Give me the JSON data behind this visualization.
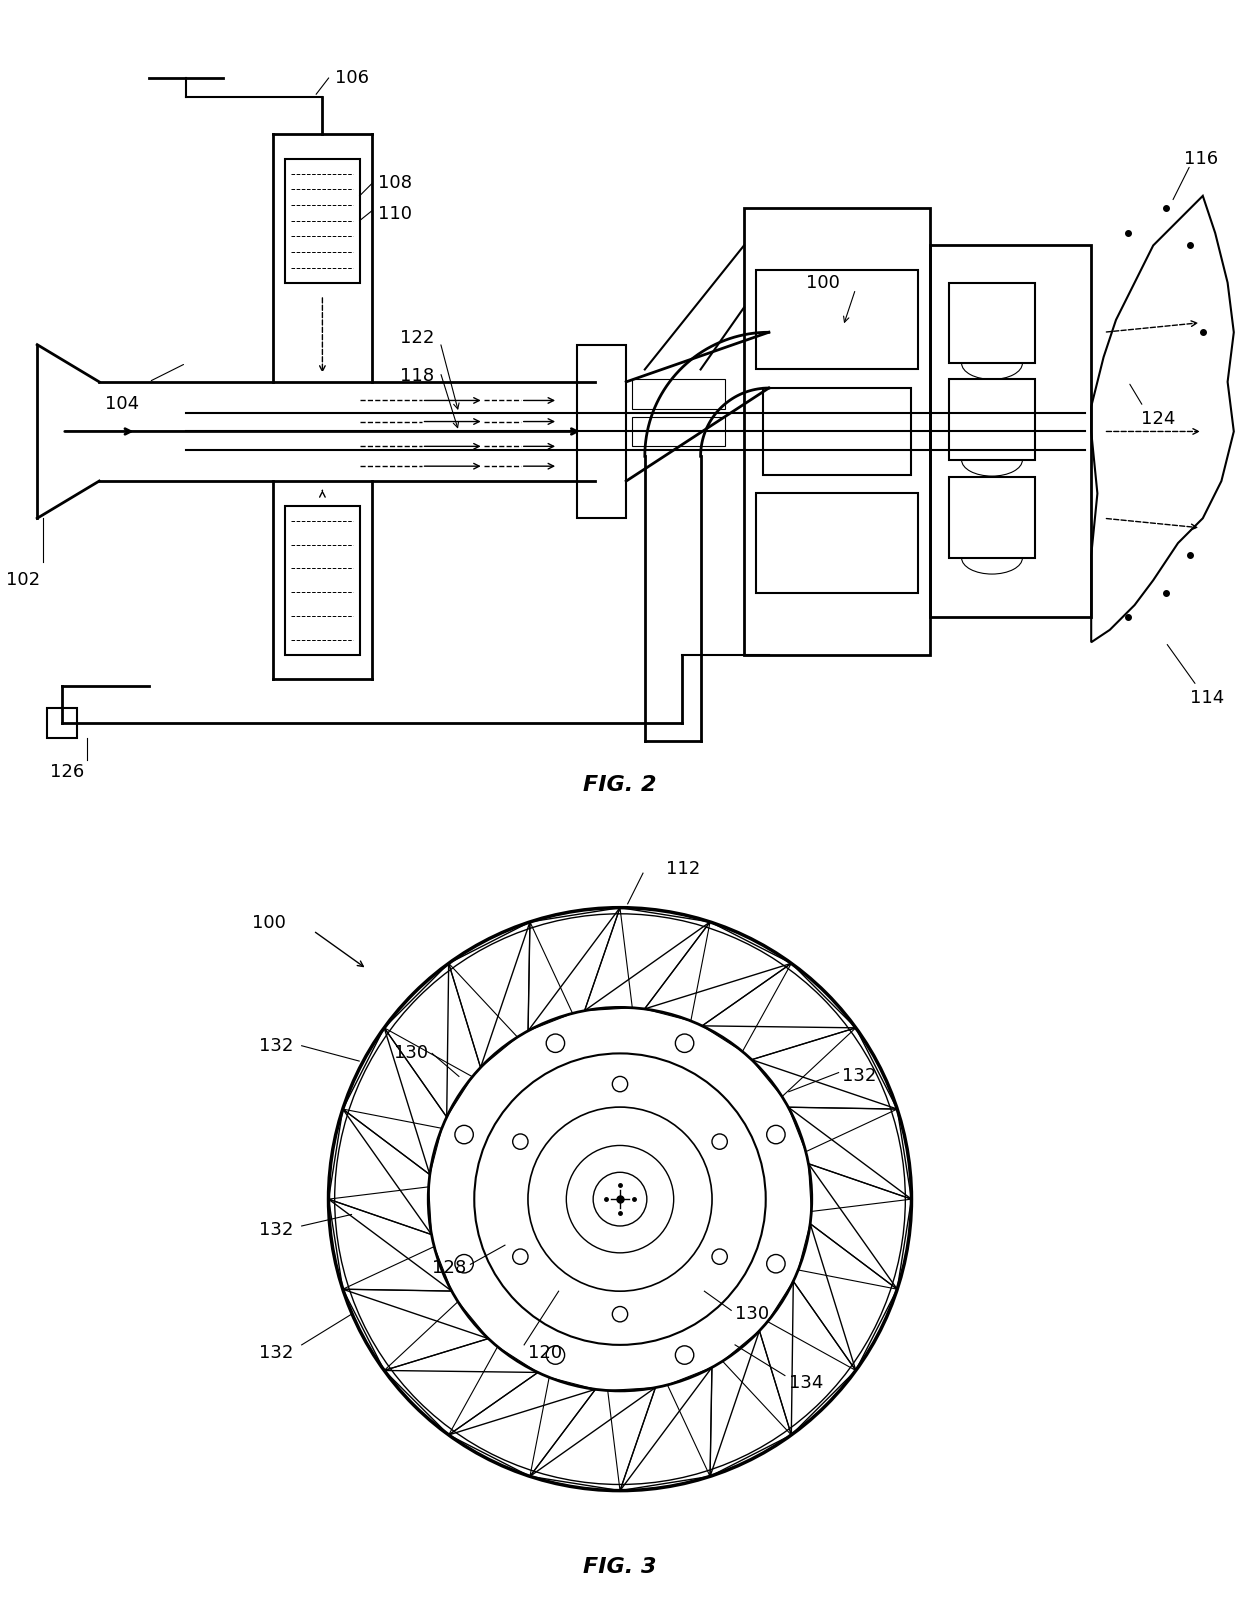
{
  "background_color": "#ffffff",
  "line_color": "#000000",
  "fig2_label": "FIG. 2",
  "fig3_label": "FIG. 3",
  "fig_label_fontsize": 16,
  "annotation_fontsize": 13,
  "lw_thick": 2.0,
  "lw_med": 1.5,
  "lw_thin": 1.0,
  "lw_hair": 0.8
}
